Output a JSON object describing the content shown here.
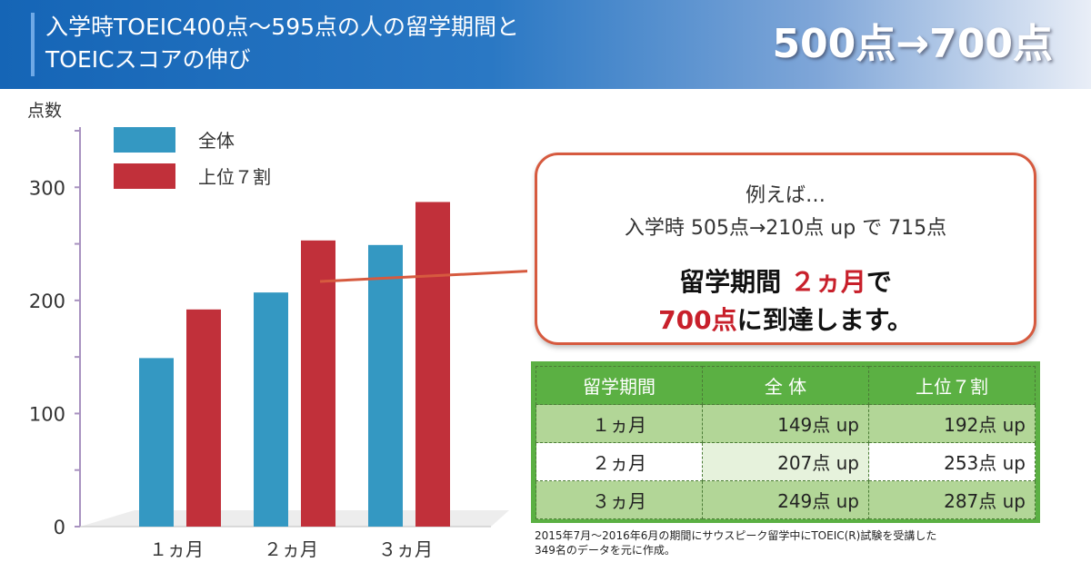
{
  "header": {
    "title_line1": "入学時TOEIC400点〜595点の人の留学期間と",
    "title_line2": "TOEICスコアの伸び",
    "highlight": "500点→700点"
  },
  "colors": {
    "series_all": "#3498c2",
    "series_top70": "#c1303a",
    "callout_border": "#d65a3f",
    "table_green": "#5bb043"
  },
  "chart_data": {
    "type": "bar",
    "ylabel": "点数",
    "categories": [
      "１ヵ月",
      "２ヵ月",
      "３ヵ月"
    ],
    "ylim": [
      0,
      350
    ],
    "yticks": [
      0,
      100,
      200,
      300
    ],
    "series": [
      {
        "name": "全体",
        "values": [
          149,
          207,
          249
        ]
      },
      {
        "name": "上位７割",
        "values": [
          192,
          253,
          287
        ]
      }
    ],
    "legend_position": "top-left"
  },
  "callout": {
    "line1": "例えば…",
    "line2": "入学時 505点→210点 up で 715点",
    "line3_a": "留学期間 ",
    "line3_b": "２ヵ月",
    "line3_c": "で",
    "line4_a": "700点",
    "line4_b": "に到達します。"
  },
  "table": {
    "headers": [
      "留学期間",
      "全 体",
      "上位７割"
    ],
    "rows": [
      [
        "１ヵ月",
        "149点 up",
        "192点 up"
      ],
      [
        "２ヵ月",
        "207点 up",
        "253点 up"
      ],
      [
        "３ヵ月",
        "249点 up",
        "287点 up"
      ]
    ]
  },
  "footnote": {
    "line1": "2015年7月〜2016年6月の期間にサウスピーク留学中にTOEIC(R)試験を受講した",
    "line2": "349名のデータを元に作成。"
  }
}
